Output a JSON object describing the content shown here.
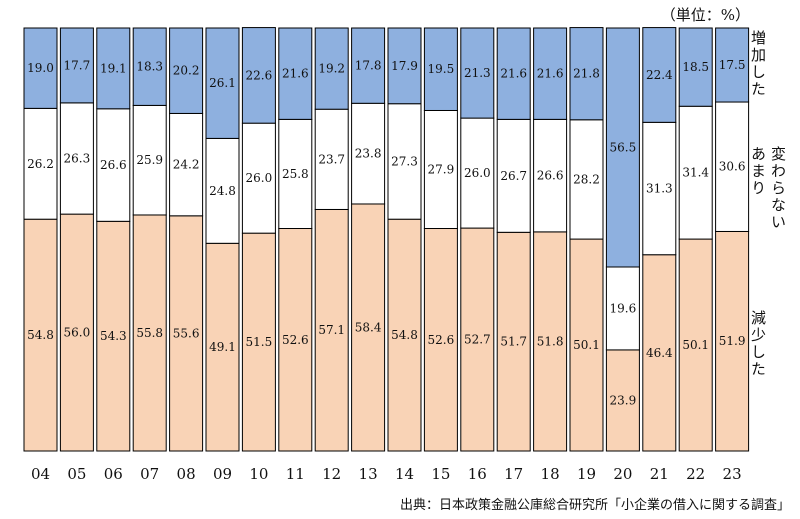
{
  "unit": "（単位：%）",
  "source": "出典：日本政策金融公庫総合研究所「小企業の借入に関する調査」",
  "colors": {
    "increase": "#8eb0df",
    "same": "#ffffff",
    "decrease": "#f9d3b6",
    "border": "#000000"
  },
  "chart_data": {
    "type": "bar",
    "stacked": true,
    "percent": true,
    "categories": [
      "04",
      "05",
      "06",
      "07",
      "08",
      "09",
      "10",
      "11",
      "12",
      "13",
      "14",
      "15",
      "16",
      "17",
      "18",
      "19",
      "20",
      "21",
      "22",
      "23"
    ],
    "series": [
      {
        "name": "減少した",
        "color": "#f9d3b6",
        "values": [
          54.8,
          56.0,
          54.3,
          55.8,
          55.6,
          49.1,
          51.5,
          52.6,
          57.1,
          58.4,
          54.8,
          52.6,
          52.7,
          51.7,
          51.8,
          50.1,
          23.9,
          46.4,
          50.1,
          51.9
        ]
      },
      {
        "name": "変わらない",
        "color": "#ffffff",
        "values": [
          26.2,
          26.3,
          26.6,
          25.9,
          24.2,
          24.8,
          26.0,
          25.8,
          23.7,
          23.8,
          27.3,
          27.9,
          26.0,
          26.7,
          26.6,
          28.2,
          19.6,
          31.3,
          31.4,
          30.6
        ]
      },
      {
        "name": "増加した",
        "color": "#8eb0df",
        "values": [
          19.0,
          17.7,
          19.1,
          18.3,
          20.2,
          26.1,
          22.6,
          21.6,
          19.2,
          17.8,
          17.9,
          19.5,
          21.3,
          21.6,
          21.6,
          21.8,
          56.5,
          22.4,
          18.5,
          17.5
        ]
      }
    ],
    "legend": {
      "increase": "増加した",
      "same_line1": "変わらない",
      "same_line2": "あまり",
      "decrease": "減少した"
    }
  }
}
